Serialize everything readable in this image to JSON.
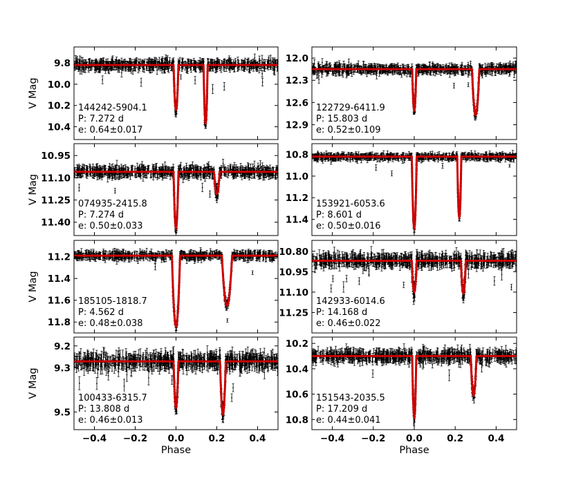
{
  "colors": {
    "data": "#000000",
    "model": "#cc0000",
    "frame": "#000000",
    "background": "#ffffff"
  },
  "shared": {
    "xlabel": "Phase",
    "ylabel": "V Mag",
    "xlim": [
      -0.5,
      0.5
    ],
    "x_ticks": [
      "−0.4",
      "−0.2",
      "0.0",
      "0.2",
      "0.4"
    ]
  },
  "chart_data": [
    {
      "type": "scatter",
      "ylabel": "V Mag",
      "xlim": [
        -0.5,
        0.5
      ],
      "ylim": [
        10.52,
        9.65
      ],
      "y_inverted": true,
      "y_ticks": [
        9.8,
        10.0,
        10.2,
        10.4
      ],
      "y_tick_labels": [
        "9.8",
        "10.0",
        "10.2",
        "10.4"
      ],
      "x_tick_labels": [
        "",
        "",
        "",
        "",
        ""
      ],
      "annotation": {
        "id": "144242-5904.1",
        "period": "P: 7.272 d",
        "ecc": "e: 0.64±0.017"
      },
      "model": {
        "baseline": 9.82,
        "eclipses": [
          {
            "phase": 0.0,
            "depth": 0.42,
            "width": 0.012
          },
          {
            "phase": 0.145,
            "depth": 0.55,
            "width": 0.01
          }
        ]
      },
      "noise": 0.04
    },
    {
      "type": "scatter",
      "ylabel": "",
      "xlim": [
        -0.5,
        0.5
      ],
      "ylim": [
        13.1,
        11.85
      ],
      "y_inverted": true,
      "y_ticks": [
        12.0,
        12.3,
        12.6,
        12.9
      ],
      "y_tick_labels": [
        "12.0",
        "12.3",
        "12.6",
        "12.9"
      ],
      "x_tick_labels": [
        "",
        "",
        "",
        "",
        ""
      ],
      "annotation": {
        "id": "122729-6411.9",
        "period": "P: 15.803 d",
        "ecc": "e: 0.52±0.109"
      },
      "model": {
        "baseline": 12.15,
        "eclipses": [
          {
            "phase": 0.0,
            "depth": 0.55,
            "width": 0.01
          },
          {
            "phase": 0.3,
            "depth": 0.62,
            "width": 0.018
          }
        ]
      },
      "noise": 0.05
    },
    {
      "type": "scatter",
      "ylabel": "V Mag",
      "xlim": [
        -0.5,
        0.5
      ],
      "ylim": [
        11.49,
        10.87
      ],
      "y_inverted": true,
      "y_ticks": [
        10.95,
        11.1,
        11.25,
        11.4
      ],
      "y_tick_labels": [
        "10.95",
        "11.10",
        "11.25",
        "11.40"
      ],
      "x_tick_labels": [
        "",
        "",
        "",
        "",
        ""
      ],
      "annotation": {
        "id": "074935-2415.8",
        "period": "P: 7.274 d",
        "ecc": "e: 0.50±0.033"
      },
      "model": {
        "baseline": 11.06,
        "eclipses": [
          {
            "phase": 0.0,
            "depth": 0.38,
            "width": 0.012
          },
          {
            "phase": 0.2,
            "depth": 0.15,
            "width": 0.014
          }
        ]
      },
      "noise": 0.03
    },
    {
      "type": "scatter",
      "ylabel": "",
      "xlim": [
        -0.5,
        0.5
      ],
      "ylim": [
        11.55,
        10.7
      ],
      "y_inverted": true,
      "y_ticks": [
        10.8,
        11.0,
        11.2,
        11.4
      ],
      "y_tick_labels": [
        "10.8",
        "11.0",
        "11.2",
        "11.4"
      ],
      "x_tick_labels": [
        "",
        "",
        "",
        "",
        ""
      ],
      "annotation": {
        "id": "153921-6053.6",
        "period": "P: 8.601 d",
        "ecc": "e: 0.50±0.016"
      },
      "model": {
        "baseline": 10.82,
        "eclipses": [
          {
            "phase": 0.0,
            "depth": 0.66,
            "width": 0.012
          },
          {
            "phase": 0.22,
            "depth": 0.56,
            "width": 0.01
          }
        ]
      },
      "noise": 0.025
    },
    {
      "type": "scatter",
      "ylabel": "V Mag",
      "xlim": [
        -0.5,
        0.5
      ],
      "ylim": [
        11.9,
        11.05
      ],
      "y_inverted": true,
      "y_ticks": [
        11.2,
        11.4,
        11.6,
        11.8
      ],
      "y_tick_labels": [
        "11.2",
        "11.4",
        "11.6",
        "11.8"
      ],
      "x_tick_labels": [
        "",
        "",
        "",
        "",
        ""
      ],
      "annotation": {
        "id": "185105-1818.7",
        "period": "P: 4.562 d",
        "ecc": "e: 0.48±0.038"
      },
      "model": {
        "baseline": 11.19,
        "eclipses": [
          {
            "phase": 0.0,
            "depth": 0.65,
            "width": 0.02
          },
          {
            "phase": 0.25,
            "depth": 0.46,
            "width": 0.025
          }
        ]
      },
      "noise": 0.03
    },
    {
      "type": "scatter",
      "ylabel": "",
      "xlim": [
        -0.5,
        0.5
      ],
      "ylim": [
        11.4,
        10.72
      ],
      "y_inverted": true,
      "y_ticks": [
        10.8,
        10.95,
        11.1,
        11.25
      ],
      "y_tick_labels": [
        "10.80",
        "10.95",
        "11.10",
        "11.25"
      ],
      "x_tick_labels": [
        "",
        "",
        "",
        "",
        ""
      ],
      "annotation": {
        "id": "142933-6014.6",
        "period": "P: 14.168 d",
        "ecc": "e: 0.46±0.022"
      },
      "model": {
        "baseline": 10.87,
        "eclipses": [
          {
            "phase": 0.0,
            "depth": 0.23,
            "width": 0.012
          },
          {
            "phase": 0.24,
            "depth": 0.24,
            "width": 0.012
          }
        ]
      },
      "noise": 0.04
    },
    {
      "type": "scatter",
      "ylabel": "V Mag",
      "xlim": [
        -0.5,
        0.5
      ],
      "ylim": [
        9.58,
        9.16
      ],
      "y_inverted": true,
      "y_ticks": [
        9.2,
        9.3,
        9.5
      ],
      "y_tick_labels": [
        "9.2",
        "9.3",
        "9.5"
      ],
      "x_tick_labels": [
        "−0.4",
        "−0.2",
        "0.0",
        "0.2",
        "0.4"
      ],
      "xlabel": "Phase",
      "annotation": {
        "id": "100433-6315.7",
        "period": "P: 13.808 d",
        "ecc": "e: 0.46±0.013"
      },
      "model": {
        "baseline": 9.27,
        "eclipses": [
          {
            "phase": 0.0,
            "depth": 0.21,
            "width": 0.012
          },
          {
            "phase": 0.23,
            "depth": 0.24,
            "width": 0.014
          }
        ]
      },
      "noise": 0.03
    },
    {
      "type": "scatter",
      "ylabel": "",
      "xlim": [
        -0.5,
        0.5
      ],
      "ylim": [
        10.88,
        10.15
      ],
      "y_inverted": true,
      "y_ticks": [
        10.2,
        10.4,
        10.6,
        10.8
      ],
      "y_tick_labels": [
        "10.2",
        "10.4",
        "10.6",
        "10.8"
      ],
      "x_tick_labels": [
        "−0.4",
        "−0.2",
        "0.0",
        "0.2",
        "0.4"
      ],
      "xlabel": "Phase",
      "annotation": {
        "id": "151543-2035.5",
        "period": "P: 17.209 d",
        "ecc": "e: 0.44±0.041"
      },
      "model": {
        "baseline": 10.3,
        "eclipses": [
          {
            "phase": 0.0,
            "depth": 0.48,
            "width": 0.01
          },
          {
            "phase": 0.29,
            "depth": 0.31,
            "width": 0.014
          }
        ]
      },
      "noise": 0.04
    }
  ]
}
